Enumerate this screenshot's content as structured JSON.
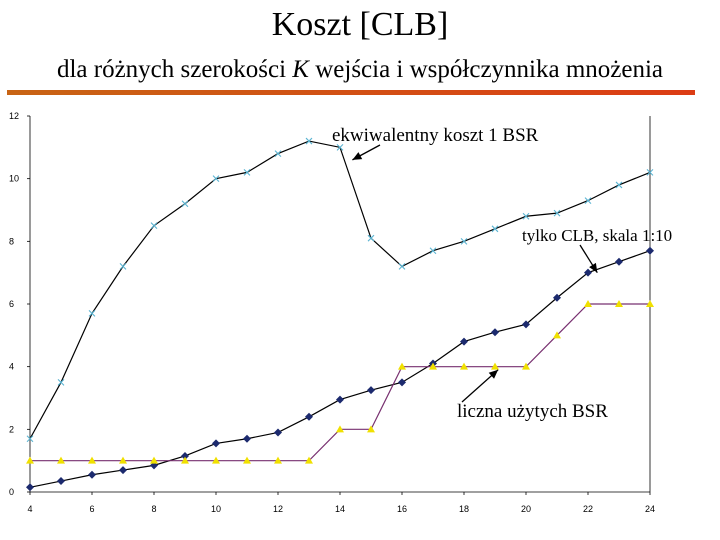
{
  "colors": {
    "rule_left": "#c86414",
    "rule_right": "#dc3c14",
    "series_cost": "#000000",
    "series_cost_marker": "#5ab4d2",
    "series_clb": "#000000",
    "series_clb_marker": "#1c2a6e",
    "series_bsr": "#783070",
    "series_bsr_marker": "#f0e000"
  },
  "chart_data": {
    "type": "line",
    "title": "Koszt [CLB]",
    "subtitle_pre": "dla różnych szerokości ",
    "subtitle_var": "K",
    "subtitle_post": " wejścia i współczynnika mnożenia",
    "xlabel": "",
    "ylabel": "",
    "xlim": [
      4,
      24
    ],
    "ylim": [
      0,
      12
    ],
    "x_ticks": [
      4,
      6,
      8,
      10,
      12,
      14,
      16,
      18,
      20,
      22,
      24
    ],
    "y_ticks": [
      0,
      2,
      4,
      6,
      8,
      10,
      12
    ],
    "grid": false,
    "x": [
      4,
      5,
      6,
      7,
      8,
      9,
      10,
      11,
      12,
      13,
      14,
      15,
      16,
      17,
      18,
      19,
      20,
      21,
      22,
      23,
      24
    ],
    "series": [
      {
        "name": "ekwiwalentny koszt 1 BSR",
        "marker": "x",
        "values": [
          1.7,
          3.5,
          5.7,
          7.2,
          8.5,
          9.2,
          10.0,
          10.2,
          10.8,
          11.2,
          11.0,
          8.1,
          7.2,
          7.7,
          8.0,
          8.4,
          8.8,
          8.9,
          9.3,
          9.8,
          10.2
        ]
      },
      {
        "name": "tylko CLB, skala 1:10",
        "marker": "diamond",
        "values": [
          0.15,
          0.35,
          0.55,
          0.7,
          0.85,
          1.15,
          1.55,
          1.7,
          1.9,
          2.4,
          2.95,
          3.25,
          3.5,
          4.1,
          4.8,
          5.1,
          5.35,
          6.2,
          7.0,
          7.35,
          7.7
        ]
      },
      {
        "name": "liczna użytych BSR",
        "marker": "triangle",
        "values": [
          1,
          1,
          1,
          1,
          1,
          1,
          1,
          1,
          1,
          1,
          2,
          2,
          4,
          4,
          4,
          4,
          4,
          5,
          6,
          6,
          6
        ]
      }
    ],
    "annotations": [
      {
        "text": "ekwiwalentny koszt 1 BSR",
        "target_x": 14.4,
        "target_y": 10.6
      },
      {
        "text": "tylko CLB, skala 1:10",
        "target_x": 22.3,
        "target_y": 7.0
      },
      {
        "text": "liczna użytych BSR",
        "target_x": 19.1,
        "target_y": 3.9
      }
    ]
  }
}
